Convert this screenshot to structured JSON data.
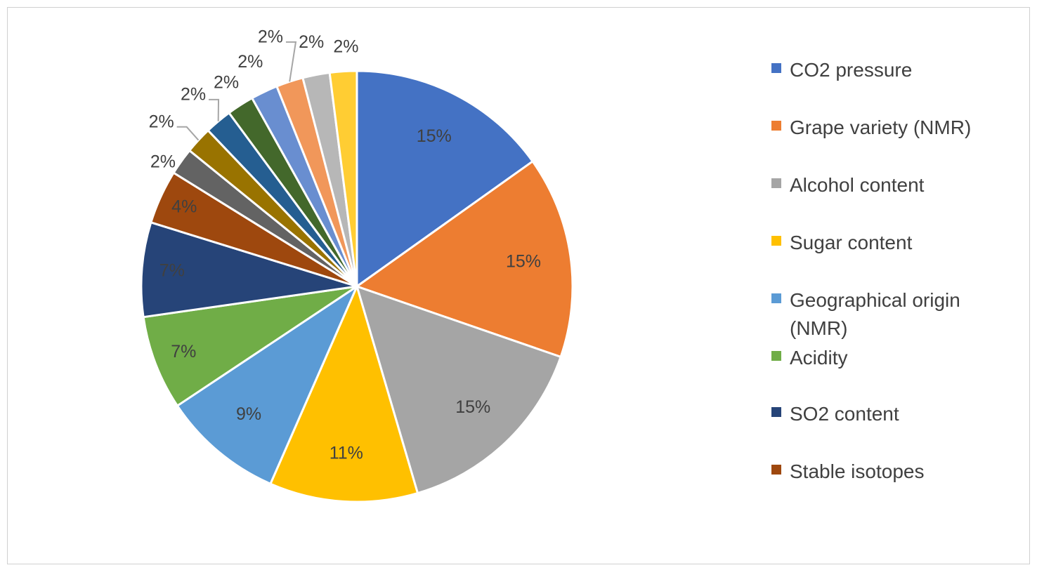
{
  "chart_data": {
    "type": "pie",
    "title": "",
    "slices": [
      {
        "name": "CO2 pressure",
        "value": 15,
        "label": "15%",
        "color": "#4472C4"
      },
      {
        "name": "Grape variety (NMR)",
        "value": 15,
        "label": "15%",
        "color": "#ED7D31"
      },
      {
        "name": "Alcohol content",
        "value": 15,
        "label": "15%",
        "color": "#A5A5A5"
      },
      {
        "name": "Sugar content",
        "value": 11,
        "label": "11%",
        "color": "#FFC000"
      },
      {
        "name": "Geographical origin (NMR)",
        "value": 9,
        "label": "9%",
        "color": "#5B9BD5"
      },
      {
        "name": "Acidity",
        "value": 7,
        "label": "7%",
        "color": "#70AD47"
      },
      {
        "name": "SO2 content",
        "value": 7,
        "label": "7%",
        "color": "#264478"
      },
      {
        "name": "Stable isotopes",
        "value": 4,
        "label": "4%",
        "color": "#9E480E"
      },
      {
        "name": "",
        "value": 2,
        "label": "2%",
        "color": "#636363"
      },
      {
        "name": "",
        "value": 2,
        "label": "2%",
        "color": "#997300"
      },
      {
        "name": "",
        "value": 2,
        "label": "2%",
        "color": "#255E91"
      },
      {
        "name": "",
        "value": 2,
        "label": "2%",
        "color": "#43682B"
      },
      {
        "name": "",
        "value": 2,
        "label": "2%",
        "color": "#698ED0"
      },
      {
        "name": "",
        "value": 2,
        "label": "2%",
        "color": "#F1975A"
      },
      {
        "name": "",
        "value": 2,
        "label": "2%",
        "color": "#B7B7B7"
      },
      {
        "name": "",
        "value": 2,
        "label": "2%",
        "color": "#FFCD33"
      }
    ],
    "legend": {
      "placement": "right",
      "entries": [
        {
          "label": "CO2 pressure",
          "color": "#4472C4"
        },
        {
          "label": "Grape variety (NMR)",
          "color": "#ED7D31"
        },
        {
          "label": "Alcohol content",
          "color": "#A5A5A5"
        },
        {
          "label": "Sugar content",
          "color": "#FFC000"
        },
        {
          "label": "Geographical origin (NMR)",
          "color": "#5B9BD5"
        },
        {
          "label": "Acidity",
          "color": "#70AD47"
        },
        {
          "label": "SO2 content",
          "color": "#264478"
        },
        {
          "label": "Stable isotopes",
          "color": "#9E480E"
        }
      ]
    }
  }
}
